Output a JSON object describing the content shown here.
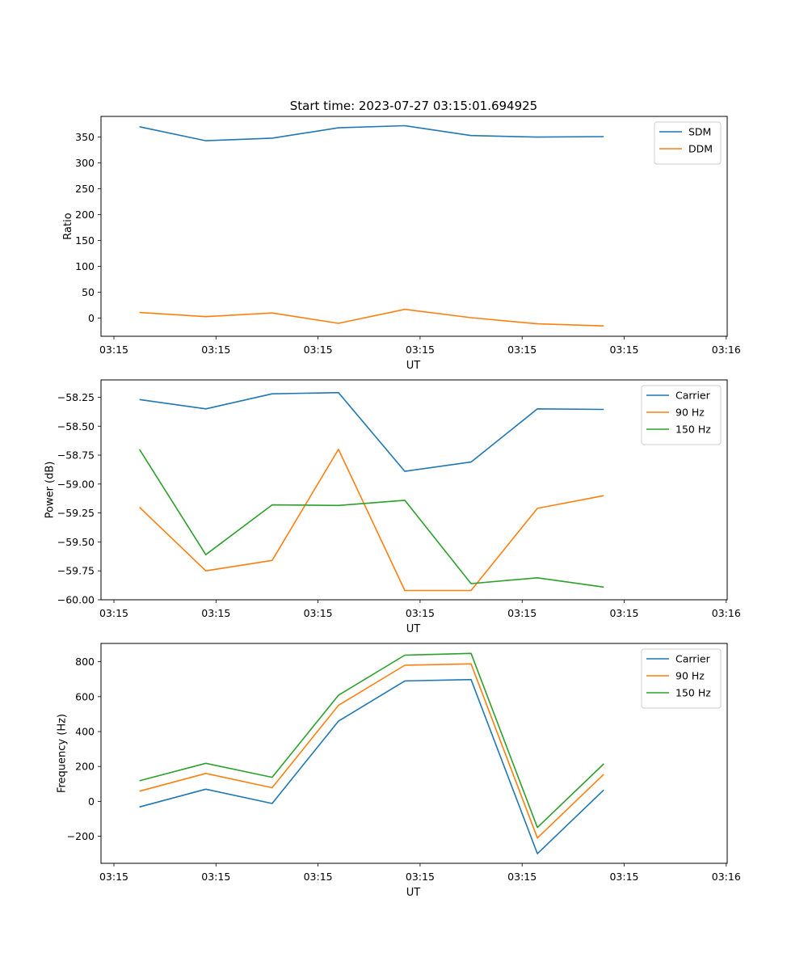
{
  "figure_title": "Start time: 2023-07-27 03:15:01.694925",
  "chart_data": [
    {
      "type": "line",
      "title": "Start time: 2023-07-27 03:15:01.694925",
      "xlabel": "UT",
      "ylabel": "Ratio",
      "x_ticks": [
        "03:15",
        "03:15",
        "03:15",
        "03:15",
        "03:15",
        "03:15",
        "03:16"
      ],
      "x_range": [
        0,
        6.17
      ],
      "x": [
        0.5,
        1.15,
        1.8,
        2.45,
        3.1,
        3.75,
        4.4,
        5.05
      ],
      "ylim": [
        -35,
        390
      ],
      "yticks": [
        0,
        50,
        100,
        150,
        200,
        250,
        300,
        350
      ],
      "legend_position": "upper right",
      "series": [
        {
          "name": "SDM",
          "color": "#1f77b4",
          "values": [
            370,
            343,
            348,
            368,
            372,
            353,
            350,
            351
          ]
        },
        {
          "name": "DDM",
          "color": "#ff7f0e",
          "values": [
            11,
            3,
            10,
            -10,
            17,
            1,
            -11,
            -15
          ]
        }
      ]
    },
    {
      "type": "line",
      "title": "",
      "xlabel": "UT",
      "ylabel": "Power (dB)",
      "x_ticks": [
        "03:15",
        "03:15",
        "03:15",
        "03:15",
        "03:15",
        "03:15",
        "03:16"
      ],
      "x_range": [
        0,
        6.17
      ],
      "x": [
        0.5,
        1.15,
        1.8,
        2.45,
        3.1,
        3.75,
        4.4,
        5.05
      ],
      "ylim": [
        -60.0,
        -58.1
      ],
      "yticks": [
        -60.0,
        -59.75,
        -59.5,
        -59.25,
        -59.0,
        -58.75,
        -58.5,
        -58.25
      ],
      "ytick_labels": [
        "−60.00",
        "−59.75",
        "−59.50",
        "−59.25",
        "−59.00",
        "−58.75",
        "−58.50",
        "−58.25"
      ],
      "legend_position": "upper right",
      "series": [
        {
          "name": "Carrier",
          "color": "#1f77b4",
          "values": [
            -58.27,
            -58.35,
            -58.22,
            -58.21,
            -58.89,
            -58.81,
            -58.35,
            -58.355
          ]
        },
        {
          "name": "90 Hz",
          "color": "#ff7f0e",
          "values": [
            -59.2,
            -59.75,
            -59.66,
            -58.7,
            -59.92,
            -59.92,
            -59.21,
            -59.1
          ]
        },
        {
          "name": "150 Hz",
          "color": "#2ca02c",
          "values": [
            -58.7,
            -59.61,
            -59.18,
            -59.185,
            -59.14,
            -59.86,
            -59.81,
            -59.89
          ]
        }
      ]
    },
    {
      "type": "line",
      "title": "",
      "xlabel": "UT",
      "ylabel": "Frequency (Hz)",
      "x_ticks": [
        "03:15",
        "03:15",
        "03:15",
        "03:15",
        "03:15",
        "03:15",
        "03:16"
      ],
      "x_range": [
        0,
        6.17
      ],
      "x": [
        0.5,
        1.15,
        1.8,
        2.45,
        3.1,
        3.75,
        4.4,
        5.05
      ],
      "ylim": [
        -355,
        905
      ],
      "yticks": [
        -200,
        0,
        200,
        400,
        600,
        800
      ],
      "ytick_labels": [
        "−200",
        "0",
        "200",
        "400",
        "600",
        "800"
      ],
      "legend_position": "upper right",
      "series": [
        {
          "name": "Carrier",
          "color": "#1f77b4",
          "values": [
            -32,
            70,
            -12,
            460,
            690,
            698,
            -300,
            65
          ]
        },
        {
          "name": "90 Hz",
          "color": "#ff7f0e",
          "values": [
            58,
            160,
            78,
            550,
            780,
            788,
            -210,
            155
          ]
        },
        {
          "name": "150 Hz",
          "color": "#2ca02c",
          "values": [
            118,
            218,
            138,
            608,
            838,
            848,
            -150,
            215
          ]
        }
      ]
    }
  ]
}
